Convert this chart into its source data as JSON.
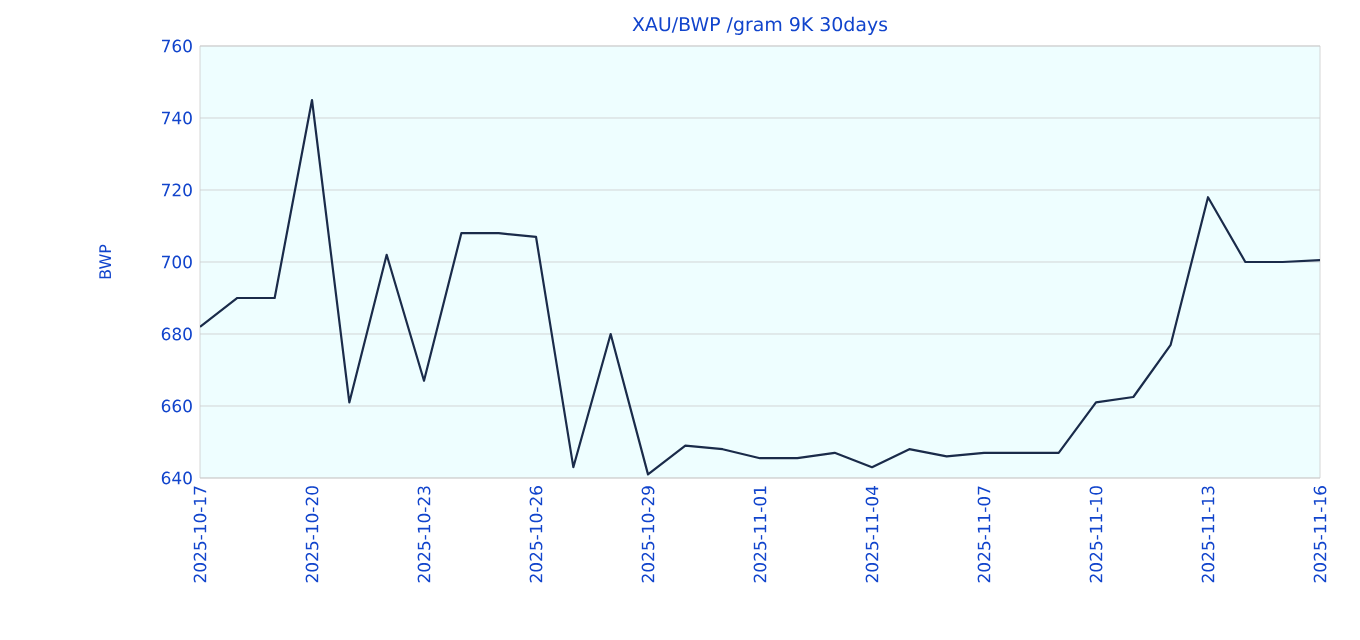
{
  "chart_data": {
    "type": "line",
    "title": "XAU/BWP /gram 9K 30days",
    "ylabel": "BWP",
    "x": [
      "2025-10-17",
      "2025-10-18",
      "2025-10-19",
      "2025-10-20",
      "2025-10-21",
      "2025-10-22",
      "2025-10-23",
      "2025-10-24",
      "2025-10-25",
      "2025-10-26",
      "2025-10-27",
      "2025-10-28",
      "2025-10-29",
      "2025-10-30",
      "2025-10-31",
      "2025-11-01",
      "2025-11-02",
      "2025-11-03",
      "2025-11-04",
      "2025-11-05",
      "2025-11-06",
      "2025-11-07",
      "2025-11-08",
      "2025-11-09",
      "2025-11-10",
      "2025-11-11",
      "2025-11-12",
      "2025-11-13",
      "2025-11-14",
      "2025-11-15",
      "2025-11-16"
    ],
    "series": [
      {
        "color": "#1a2b4a",
        "values": [
          682,
          690,
          690,
          745,
          661,
          702,
          667,
          708,
          708,
          707,
          643,
          680,
          641,
          649,
          648,
          645.5,
          645.5,
          647,
          643,
          648,
          646,
          647,
          647,
          647,
          661,
          662.5,
          677,
          718,
          700,
          700,
          700.5
        ]
      }
    ],
    "xlim": [
      "2025-10-17",
      "2025-11-16"
    ],
    "xticks": [
      "2025-10-17",
      "2025-10-20",
      "2025-10-23",
      "2025-10-26",
      "2025-10-29",
      "2025-11-01",
      "2025-11-04",
      "2025-11-07",
      "2025-11-10",
      "2025-11-13",
      "2025-11-16"
    ],
    "ylim": [
      640,
      760
    ],
    "yticks": [
      640,
      660,
      680,
      700,
      720,
      740,
      760
    ],
    "grid": "y",
    "marker": "none",
    "line_style": "solid"
  }
}
